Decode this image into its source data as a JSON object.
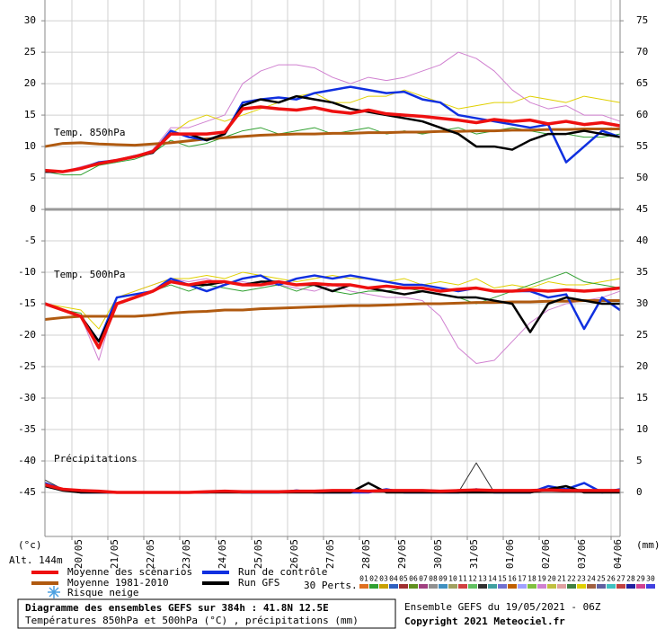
{
  "chart_data": {
    "type": "line",
    "title": "Diagramme des ensembles GEFS sur 384h : 41.8N 12.5E",
    "subtitle": "Températures 850hPa et 500hPa (°C) , précipitations (mm)",
    "run_info": "Ensemble GEFS du 19/05/2021 - 06Z",
    "copyright": "Copyright 2021 Meteociel.fr",
    "panel_labels": [
      "Temp. 850hPa",
      "Temp. 500hPa",
      "Précipitations"
    ],
    "y_unit": "(°c)",
    "y2_unit": "(mm)",
    "altitude": "Alt. 144m",
    "snow_label": "Risque neige",
    "perts_label": "30 Perts.",
    "grid": true,
    "xlim": [
      0,
      384
    ],
    "xticks": [
      {
        "value": 18,
        "label": "20/05"
      },
      {
        "value": 42,
        "label": "21/05"
      },
      {
        "value": 66,
        "label": "22/05"
      },
      {
        "value": 90,
        "label": "23/05"
      },
      {
        "value": 114,
        "label": "24/05"
      },
      {
        "value": 138,
        "label": "25/05"
      },
      {
        "value": 162,
        "label": "26/05"
      },
      {
        "value": 186,
        "label": "27/05"
      },
      {
        "value": 210,
        "label": "28/05"
      },
      {
        "value": 234,
        "label": "29/05"
      },
      {
        "value": 258,
        "label": "30/05"
      },
      {
        "value": 282,
        "label": "31/05"
      },
      {
        "value": 306,
        "label": "01/06"
      },
      {
        "value": 330,
        "label": "02/06"
      },
      {
        "value": 354,
        "label": "03/06"
      },
      {
        "value": 378,
        "label": "04/06"
      }
    ],
    "ylim": [
      -52,
      33.3
    ],
    "yticks": [
      30,
      25,
      20,
      15,
      10,
      5,
      0,
      -5,
      -10,
      -15,
      -20,
      -25,
      -30,
      -35,
      -40,
      -45
    ],
    "y2lim": [
      -7,
      78.3
    ],
    "y2ticks": [
      75,
      70,
      65,
      60,
      55,
      50,
      45,
      40,
      35,
      30,
      25,
      20,
      15,
      10,
      5,
      0
    ],
    "x": [
      0,
      12,
      24,
      36,
      48,
      60,
      72,
      84,
      96,
      108,
      120,
      132,
      144,
      156,
      168,
      180,
      192,
      204,
      216,
      228,
      240,
      252,
      264,
      276,
      288,
      300,
      312,
      324,
      336,
      348,
      360,
      372,
      384
    ],
    "perturbations": [
      {
        "label": "01",
        "color": "#e07020"
      },
      {
        "label": "02",
        "color": "#30a030"
      },
      {
        "label": "03",
        "color": "#c8a000"
      },
      {
        "label": "04",
        "color": "#3060c0"
      },
      {
        "label": "05",
        "color": "#a03030"
      },
      {
        "label": "06",
        "color": "#609020"
      },
      {
        "label": "07",
        "color": "#a04080"
      },
      {
        "label": "08",
        "color": "#909090"
      },
      {
        "label": "09",
        "color": "#4090c0"
      },
      {
        "label": "10",
        "color": "#a0a060"
      },
      {
        "label": "11",
        "color": "#d04040"
      },
      {
        "label": "12",
        "color": "#60c060"
      },
      {
        "label": "13",
        "color": "#303030"
      },
      {
        "label": "14",
        "color": "#40a0a0"
      },
      {
        "label": "15",
        "color": "#7070d0"
      },
      {
        "label": "16",
        "color": "#c06000"
      },
      {
        "label": "17",
        "color": "#a0a0ff"
      },
      {
        "label": "18",
        "color": "#80c040"
      },
      {
        "label": "19",
        "color": "#d080d0"
      },
      {
        "label": "20",
        "color": "#c0c040"
      },
      {
        "label": "21",
        "color": "#e0a0a0"
      },
      {
        "label": "22",
        "color": "#408040"
      },
      {
        "label": "23",
        "color": "#e0d000"
      },
      {
        "label": "24",
        "color": "#a06040"
      },
      {
        "label": "25",
        "color": "#6060a0"
      },
      {
        "label": "26",
        "color": "#40c0c0"
      },
      {
        "label": "27",
        "color": "#c04040"
      },
      {
        "label": "28",
        "color": "#2020a0"
      },
      {
        "label": "29",
        "color": "#d04090"
      },
      {
        "label": "30",
        "color": "#4040e0"
      }
    ],
    "series": [
      {
        "pert": 18,
        "values": [
          6,
          6,
          6.8,
          7.5,
          8,
          8.5,
          9.5,
          13,
          13,
          14,
          15,
          20,
          22,
          23,
          23,
          22.5,
          21,
          20,
          21,
          20.5,
          21,
          22,
          23,
          25,
          24,
          22,
          19,
          17,
          16,
          16.5,
          15,
          15,
          14
        ]
      },
      {
        "pert": 22,
        "values": [
          6,
          6,
          6.5,
          7,
          7.8,
          8.5,
          9,
          12,
          14,
          15,
          14,
          15,
          16,
          17,
          18,
          18.5,
          17,
          17,
          18,
          18,
          19,
          18,
          17,
          16,
          16.5,
          17,
          17,
          18,
          17.5,
          17,
          18,
          17.5,
          17
        ]
      },
      {
        "pert": 1,
        "values": [
          6,
          5.5,
          5.5,
          7,
          7.5,
          8,
          9,
          11,
          10,
          10.5,
          11.5,
          12.5,
          13,
          12,
          12.5,
          13,
          12,
          12.5,
          13,
          12,
          12.5,
          12,
          12.5,
          13,
          12,
          12.5,
          13,
          12.5,
          12,
          12,
          11.5,
          11.5,
          12
        ]
      },
      {
        "pert": 18,
        "values": [
          -15,
          -16,
          -17,
          -24,
          -14,
          -13,
          -12,
          -11,
          -11.5,
          -11,
          -12,
          -11.5,
          -12,
          -12,
          -12.5,
          -13,
          -12,
          -13,
          -13.5,
          -14,
          -14,
          -14.5,
          -17,
          -22,
          -24.5,
          -24,
          -21,
          -18,
          -16,
          -15,
          -14.5,
          -14,
          -13
        ]
      },
      {
        "pert": 22,
        "values": [
          -15,
          -15.5,
          -16,
          -19,
          -14,
          -13,
          -12,
          -11,
          -11,
          -10.5,
          -11,
          -10,
          -10.5,
          -11,
          -11.5,
          -11,
          -10.5,
          -11,
          -11,
          -11.5,
          -11,
          -12,
          -11.5,
          -12,
          -11,
          -12.5,
          -12,
          -12.5,
          -11.5,
          -12,
          -12,
          -11.5,
          -11
        ]
      },
      {
        "pert": 1,
        "values": [
          -15,
          -16,
          -16.5,
          -22,
          -15,
          -14,
          -13,
          -12,
          -13,
          -12,
          -12.5,
          -13,
          -12.5,
          -12,
          -13,
          -12,
          -13,
          -13.5,
          -13,
          -13,
          -12.5,
          -13,
          -13.5,
          -14,
          -15,
          -14,
          -13,
          -12,
          -11,
          -10,
          -11.5,
          -12,
          -12.5
        ]
      },
      {
        "pert": 12,
        "axis": "y2",
        "values": [
          2,
          0.5,
          0,
          0,
          0,
          0,
          0,
          0,
          0,
          0,
          0,
          0,
          0,
          0,
          0,
          0,
          0,
          0,
          0,
          0,
          0,
          0,
          0,
          0,
          4.7,
          0,
          0,
          0,
          0,
          0,
          0,
          0,
          0
        ]
      },
      {
        "name": "Moyenne 1981-2010",
        "color": "#b05a10",
        "values": [
          10,
          10.5,
          10.6,
          10.4,
          10.3,
          10.2,
          10.4,
          10.6,
          10.9,
          11.2,
          11.4,
          11.6,
          11.8,
          11.9,
          12,
          12,
          12.1,
          12.1,
          12.2,
          12.2,
          12.3,
          12.3,
          12.4,
          12.4,
          12.5,
          12.5,
          12.6,
          12.6,
          12.7,
          12.7,
          12.8,
          12.8,
          12.8
        ]
      },
      {
        "name": "Run de contrôle",
        "color": "#1030e0",
        "values": [
          6,
          6,
          6.5,
          7.5,
          7.8,
          8.5,
          9,
          12.5,
          11.5,
          11,
          12,
          17,
          17.5,
          17.8,
          17.5,
          18.5,
          19,
          19.5,
          19,
          18.5,
          18.7,
          17.5,
          17,
          15,
          14.5,
          14,
          13.5,
          13,
          13.5,
          7.5,
          10,
          12.5,
          11.5
        ]
      },
      {
        "name": "Run GFS",
        "color": "#000000",
        "values": [
          6,
          6,
          6.5,
          7.3,
          7.8,
          8.4,
          9,
          12,
          12,
          11,
          12,
          16.5,
          17.5,
          17,
          18,
          17.5,
          17,
          16,
          15.5,
          15,
          14.5,
          14,
          13,
          12,
          10,
          10,
          9.5,
          11,
          12,
          12,
          12.5,
          12,
          11.5
        ]
      },
      {
        "name": "Moyenne des scénarios",
        "color": "#ee1010",
        "values": [
          6.2,
          6,
          6.5,
          7.3,
          7.8,
          8.4,
          9.2,
          12,
          12,
          12,
          12.3,
          16,
          16.3,
          16,
          15.8,
          16.2,
          15.6,
          15.3,
          15.8,
          15.2,
          15,
          14.8,
          14.5,
          14.2,
          13.8,
          14.3,
          14,
          14.2,
          13.6,
          14,
          13.5,
          13.8,
          13.3
        ]
      },
      {
        "name": "Moyenne 1981-2010",
        "color": "#b05a10",
        "values": [
          -17.5,
          -17.2,
          -17,
          -17,
          -17,
          -17,
          -16.8,
          -16.5,
          -16.3,
          -16.2,
          -16,
          -16,
          -15.8,
          -15.7,
          -15.6,
          -15.5,
          -15.4,
          -15.3,
          -15.3,
          -15.2,
          -15.1,
          -15,
          -15,
          -14.9,
          -14.8,
          -14.8,
          -14.7,
          -14.7,
          -14.6,
          -14.6,
          -14.5,
          -14.5,
          -14.5
        ]
      },
      {
        "name": "Run de contrôle",
        "color": "#1030e0",
        "values": [
          -15,
          -16,
          -17,
          -21,
          -14,
          -13.5,
          -13,
          -11,
          -12,
          -13,
          -12,
          -11,
          -10.5,
          -12,
          -11,
          -10.5,
          -11,
          -10.5,
          -11,
          -11.5,
          -12,
          -12,
          -12.5,
          -13,
          -12.5,
          -13,
          -13,
          -13,
          -14,
          -13.5,
          -19,
          -14,
          -16
        ]
      },
      {
        "name": "Run GFS",
        "color": "#000000",
        "values": [
          -15,
          -16,
          -17,
          -21,
          -15,
          -14,
          -13,
          -11.5,
          -12,
          -12,
          -11.5,
          -12,
          -11.5,
          -11.5,
          -12,
          -12,
          -13,
          -12,
          -12.5,
          -13,
          -13.5,
          -13,
          -13.5,
          -14,
          -14,
          -14.5,
          -15,
          -19.5,
          -15,
          -14,
          -14.5,
          -15,
          -15
        ]
      },
      {
        "name": "Moyenne des scénarios",
        "color": "#ee1010",
        "values": [
          -15,
          -16,
          -17,
          -22,
          -15,
          -14,
          -13,
          -11.5,
          -12,
          -11.5,
          -11.5,
          -12,
          -12,
          -11.5,
          -12,
          -11.8,
          -12,
          -12,
          -12.5,
          -12.2,
          -12.5,
          -12.5,
          -13,
          -12.7,
          -12.5,
          -13,
          -13,
          -12.8,
          -13,
          -12.8,
          -13,
          -12.8,
          -12.5
        ]
      },
      {
        "name": "Run de contrôle",
        "color": "#1030e0",
        "axis": "y2",
        "values": [
          1.5,
          0.5,
          0,
          0,
          0,
          0,
          0,
          0,
          0,
          0,
          0.2,
          0,
          0,
          0,
          0.3,
          0,
          0,
          0,
          0,
          0.5,
          0,
          0,
          0,
          0,
          0.5,
          0,
          0,
          0,
          1,
          0.5,
          1.5,
          0,
          0.5
        ]
      },
      {
        "name": "Run GFS",
        "color": "#000000",
        "axis": "y2",
        "values": [
          1,
          0.3,
          0,
          0,
          0,
          0,
          0,
          0,
          0,
          0,
          0,
          0,
          0,
          0,
          0,
          0,
          0,
          0,
          1.5,
          0,
          0,
          0,
          0,
          0,
          0,
          0,
          0,
          0,
          0.5,
          1,
          0,
          0,
          0
        ]
      },
      {
        "name": "Moyenne des scénarios",
        "color": "#ee1010",
        "axis": "y2",
        "values": [
          1.2,
          0.5,
          0.3,
          0.2,
          0,
          0,
          0,
          0,
          0,
          0.1,
          0.2,
          0.1,
          0.1,
          0.1,
          0.2,
          0.2,
          0.3,
          0.3,
          0.2,
          0.3,
          0.3,
          0.3,
          0.2,
          0.3,
          0.4,
          0.3,
          0.3,
          0.3,
          0.4,
          0.3,
          0.3,
          0.3,
          0.3
        ]
      }
    ]
  }
}
